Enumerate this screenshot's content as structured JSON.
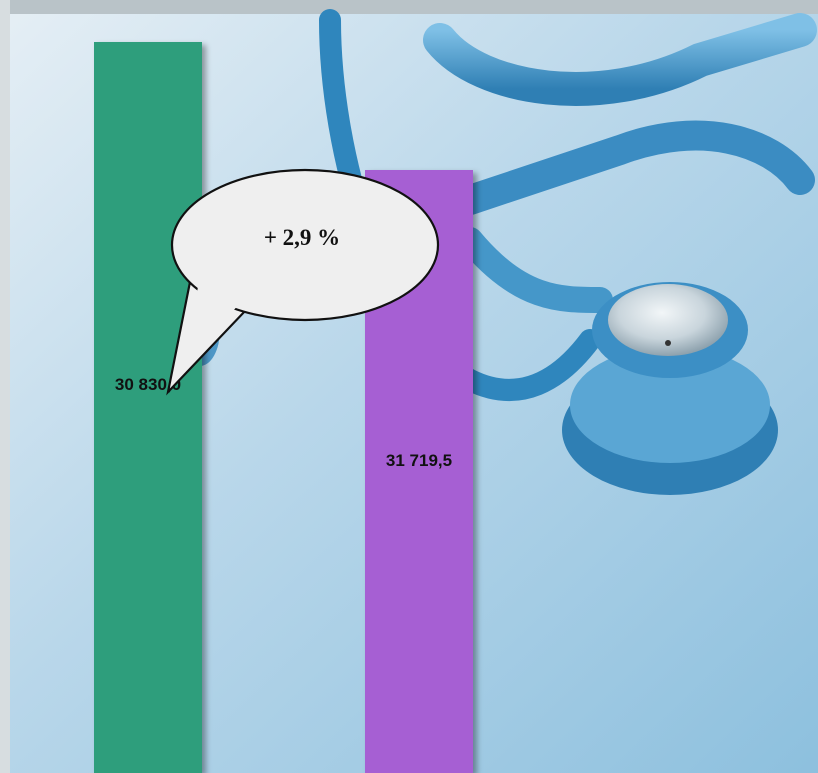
{
  "chart_data": {
    "type": "bar",
    "categories": [
      "",
      ""
    ],
    "values": [
      30830.0,
      31719.5
    ],
    "value_labels": [
      "30 830,0",
      "31 719,5"
    ],
    "colors": [
      "#2e9e7c",
      "#a65ed3"
    ],
    "title": "",
    "xlabel": "",
    "ylabel": "",
    "ylim": [
      0,
      31719.5
    ],
    "grid": false,
    "legend": "none",
    "annotation": "+ 2,9 %"
  },
  "background": {
    "image_subject": "stethoscope-photo",
    "colors": [
      "#dbe9f2",
      "#8fc3df",
      "#3d8fc0"
    ]
  }
}
